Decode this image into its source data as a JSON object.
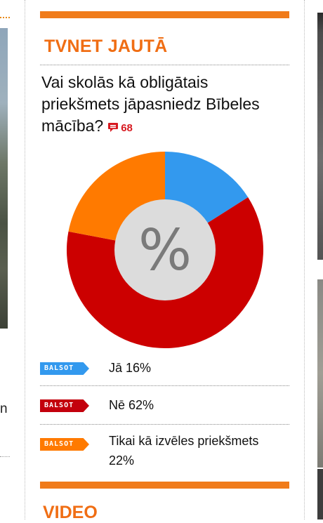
{
  "poll": {
    "title": "TVNET JAUTĀ",
    "question": "Vai skolās kā obligātais priekšmets jāpasniedz Bībeles mācība?",
    "comments_count": "68",
    "center_symbol": "%",
    "vote_label": "BALSOT",
    "options": [
      {
        "label": "Jā 16%",
        "percent": 16,
        "color": "#3399ee"
      },
      {
        "label": "Nē 62%",
        "percent": 62,
        "color": "#cc0000"
      },
      {
        "label": "Tikai kā izvēles priekšmets 22%",
        "percent": 22,
        "color": "#ff7a00"
      }
    ]
  },
  "next_section": {
    "title": "VIDEO"
  },
  "left_column": {
    "visible_text": "n"
  },
  "colors": {
    "accent_orange": "#f07b1a",
    "title_orange": "#f06e14",
    "comment_red": "#d71920"
  }
}
